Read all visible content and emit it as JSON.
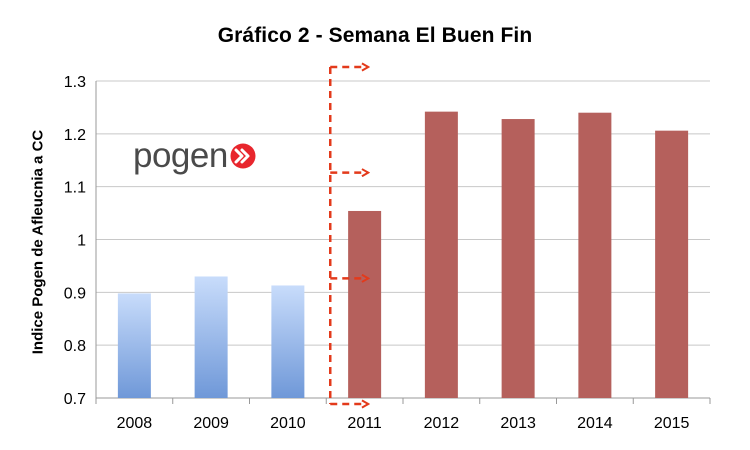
{
  "brand": {
    "logo_text": "pogen"
  },
  "chart_data": {
    "type": "bar",
    "title": "Gráfico 2 - Semana El Buen Fin",
    "xlabel": "",
    "ylabel": "Indice Pogen de Afleucnia a CC",
    "categories": [
      "2008",
      "2009",
      "2010",
      "2011",
      "2012",
      "2013",
      "2014",
      "2015"
    ],
    "values": [
      0.898,
      0.93,
      0.913,
      1.054,
      1.242,
      1.228,
      1.24,
      1.206
    ],
    "ylim": [
      0.7,
      1.3
    ],
    "yticks": [
      0.7,
      0.8,
      0.9,
      1,
      1.1,
      1.2,
      1.3
    ],
    "ytick_labels": [
      "0.7",
      "0.8",
      "0.9",
      "1",
      "1.1",
      "1.2",
      "1.3"
    ],
    "grid": true,
    "colors": {
      "before": "#6f98d8",
      "before_light": "#c8dcfb",
      "after": "#b5605c",
      "annotation": "#e33a1b",
      "grid": "#c8c8c8"
    },
    "annotation": {
      "type": "dashed-divider-with-arrows",
      "between": [
        "2010",
        "2011"
      ],
      "arrow_levels": [
        1.3,
        1.1,
        0.9,
        0.7
      ]
    }
  }
}
